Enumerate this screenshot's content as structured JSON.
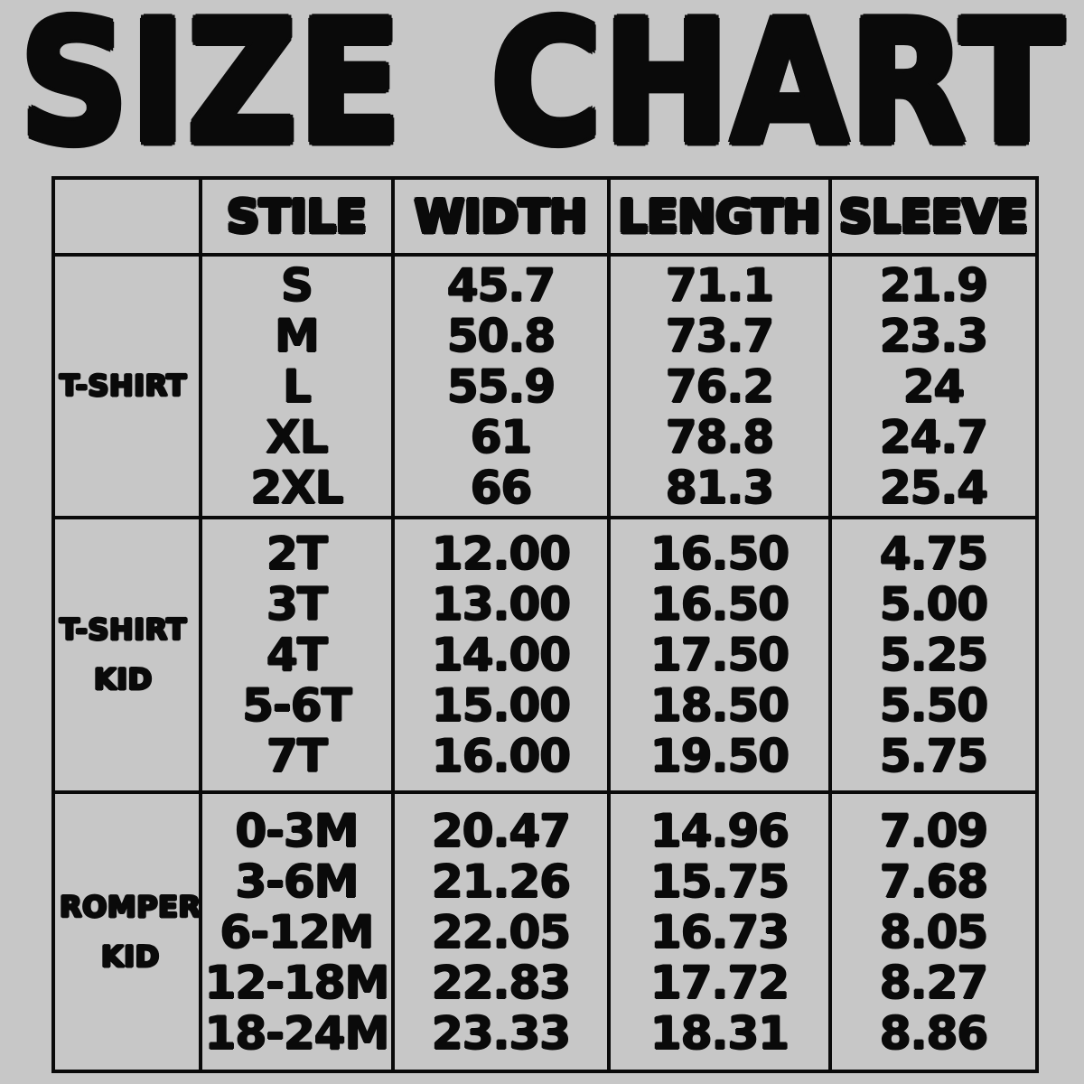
{
  "title": "SIZE CHART",
  "colors": {
    "background": "#c7c7c7",
    "ink": "#0a0a0a"
  },
  "chart_data": {
    "type": "table",
    "title": "SIZE CHART",
    "header": [
      "",
      "STILE",
      "WIDTH",
      "LENGTH",
      "SLEEVE"
    ],
    "groups": [
      {
        "label": "T-SHIRT",
        "label_lines": [
          "T-SHIRT"
        ],
        "rows": [
          [
            "S",
            "45.7",
            "71.1",
            "21.9"
          ],
          [
            "M",
            "50.8",
            "73.7",
            "23.3"
          ],
          [
            "L",
            "55.9",
            "76.2",
            "24"
          ],
          [
            "XL",
            "61",
            "78.8",
            "24.7"
          ],
          [
            "2XL",
            "66",
            "81.3",
            "25.4"
          ]
        ]
      },
      {
        "label": "T-SHIRT KID",
        "label_lines": [
          "T-SHIRT",
          "KID"
        ],
        "rows": [
          [
            "2T",
            "12.00",
            "16.50",
            "4.75"
          ],
          [
            "3T",
            "13.00",
            "16.50",
            "5.00"
          ],
          [
            "4T",
            "14.00",
            "17.50",
            "5.25"
          ],
          [
            "5-6T",
            "15.00",
            "18.50",
            "5.50"
          ],
          [
            "7T",
            "16.00",
            "19.50",
            "5.75"
          ]
        ]
      },
      {
        "label": "ROMPER KID",
        "label_lines": [
          "ROMPER",
          "KID"
        ],
        "rows": [
          [
            "0-3M",
            "20.47",
            "14.96",
            "7.09"
          ],
          [
            "3-6M",
            "21.26",
            "15.75",
            "7.68"
          ],
          [
            "6-12M",
            "22.05",
            "16.73",
            "8.05"
          ],
          [
            "12-18M",
            "22.83",
            "17.72",
            "8.27"
          ],
          [
            "18-24M",
            "23.33",
            "18.31",
            "8.86"
          ]
        ]
      }
    ]
  }
}
